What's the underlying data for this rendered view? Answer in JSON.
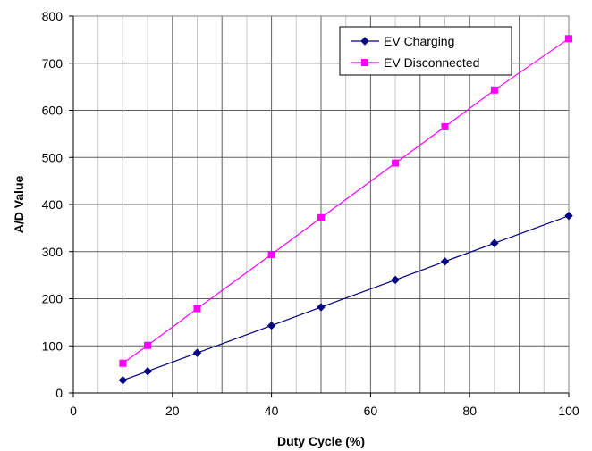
{
  "chart_data": {
    "type": "line",
    "title": "",
    "xlabel": "Duty Cycle (%)",
    "ylabel": "A/D Value",
    "xlim": [
      0,
      100
    ],
    "ylim": [
      0,
      800
    ],
    "xticks": [
      0,
      20,
      40,
      60,
      80,
      100
    ],
    "yticks": [
      0,
      100,
      200,
      300,
      400,
      500,
      600,
      700,
      800
    ],
    "grid": true,
    "legend": "top-right",
    "series": [
      {
        "name": "EV Charging",
        "color": "#000080",
        "marker": "diamond",
        "points": [
          [
            10,
            27
          ],
          [
            15,
            46
          ],
          [
            25,
            85
          ],
          [
            40,
            143
          ],
          [
            50,
            182
          ],
          [
            65,
            240
          ],
          [
            75,
            279
          ],
          [
            85,
            318
          ],
          [
            100,
            376
          ]
        ]
      },
      {
        "name": "EV Disconnected",
        "color": "#ff00ff",
        "marker": "square",
        "points": [
          [
            10,
            63
          ],
          [
            15,
            101
          ],
          [
            25,
            179
          ],
          [
            40,
            294
          ],
          [
            50,
            372
          ],
          [
            65,
            488
          ],
          [
            75,
            565
          ],
          [
            85,
            643
          ],
          [
            100,
            752
          ]
        ]
      }
    ]
  }
}
